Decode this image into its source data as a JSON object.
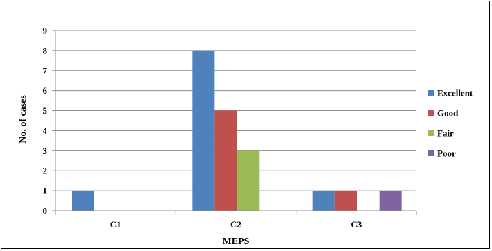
{
  "chart_data": {
    "type": "bar",
    "title": "",
    "xlabel": "MEPS",
    "ylabel": "No. of cases",
    "categories": [
      "C1",
      "C2",
      "C3"
    ],
    "ylim": [
      0,
      9
    ],
    "yticks": [
      "0",
      "1",
      "2",
      "3",
      "4",
      "5",
      "6",
      "7",
      "8",
      "9"
    ],
    "grid": "horizontal",
    "legend_position": "right",
    "series": [
      {
        "name": "Excellent",
        "color": "#4F81BD",
        "values": [
          1,
          8,
          1
        ]
      },
      {
        "name": "Good",
        "color": "#C0504D",
        "values": [
          0,
          5,
          1
        ]
      },
      {
        "name": "Fair",
        "color": "#9BBB59",
        "values": [
          0,
          3,
          0
        ]
      },
      {
        "name": "Poor",
        "color": "#8064A2",
        "values": [
          0,
          0,
          1
        ]
      }
    ]
  }
}
